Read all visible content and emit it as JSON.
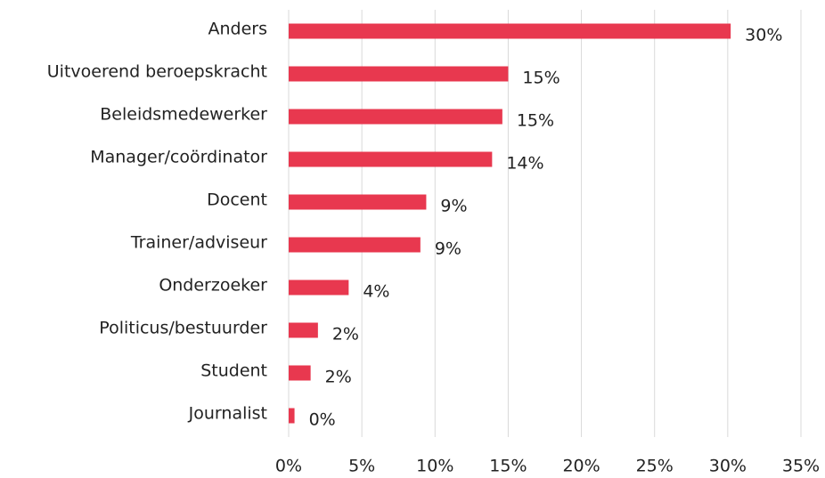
{
  "chart_data": {
    "type": "barh",
    "categories": [
      "Anders",
      "Uitvoerend beroepskracht",
      "Beleidsmedewerker",
      "Manager/coördinator",
      "Docent",
      "Trainer/adviseur",
      "Onderzoeker",
      "Politicus/bestuurder",
      "Student",
      "Journalist"
    ],
    "values": [
      30.2,
      15.0,
      14.6,
      13.9,
      9.4,
      9.0,
      4.1,
      2.0,
      1.5,
      0.4
    ],
    "value_labels": [
      "30%",
      "15%",
      "15%",
      "14%",
      "9%",
      "9%",
      "4%",
      "2%",
      "2%",
      "0%"
    ],
    "color": "#e8384f",
    "xlim": [
      0,
      35
    ],
    "xticks": [
      {
        "value": 0,
        "label": "0%"
      },
      {
        "value": 5,
        "label": "5%"
      },
      {
        "value": 10,
        "label": "10%"
      },
      {
        "value": 15,
        "label": "15%"
      },
      {
        "value": 20,
        "label": "20%"
      },
      {
        "value": 25,
        "label": "25%"
      },
      {
        "value": 30,
        "label": "30%"
      },
      {
        "value": 35,
        "label": "35%"
      }
    ],
    "grid": true
  }
}
